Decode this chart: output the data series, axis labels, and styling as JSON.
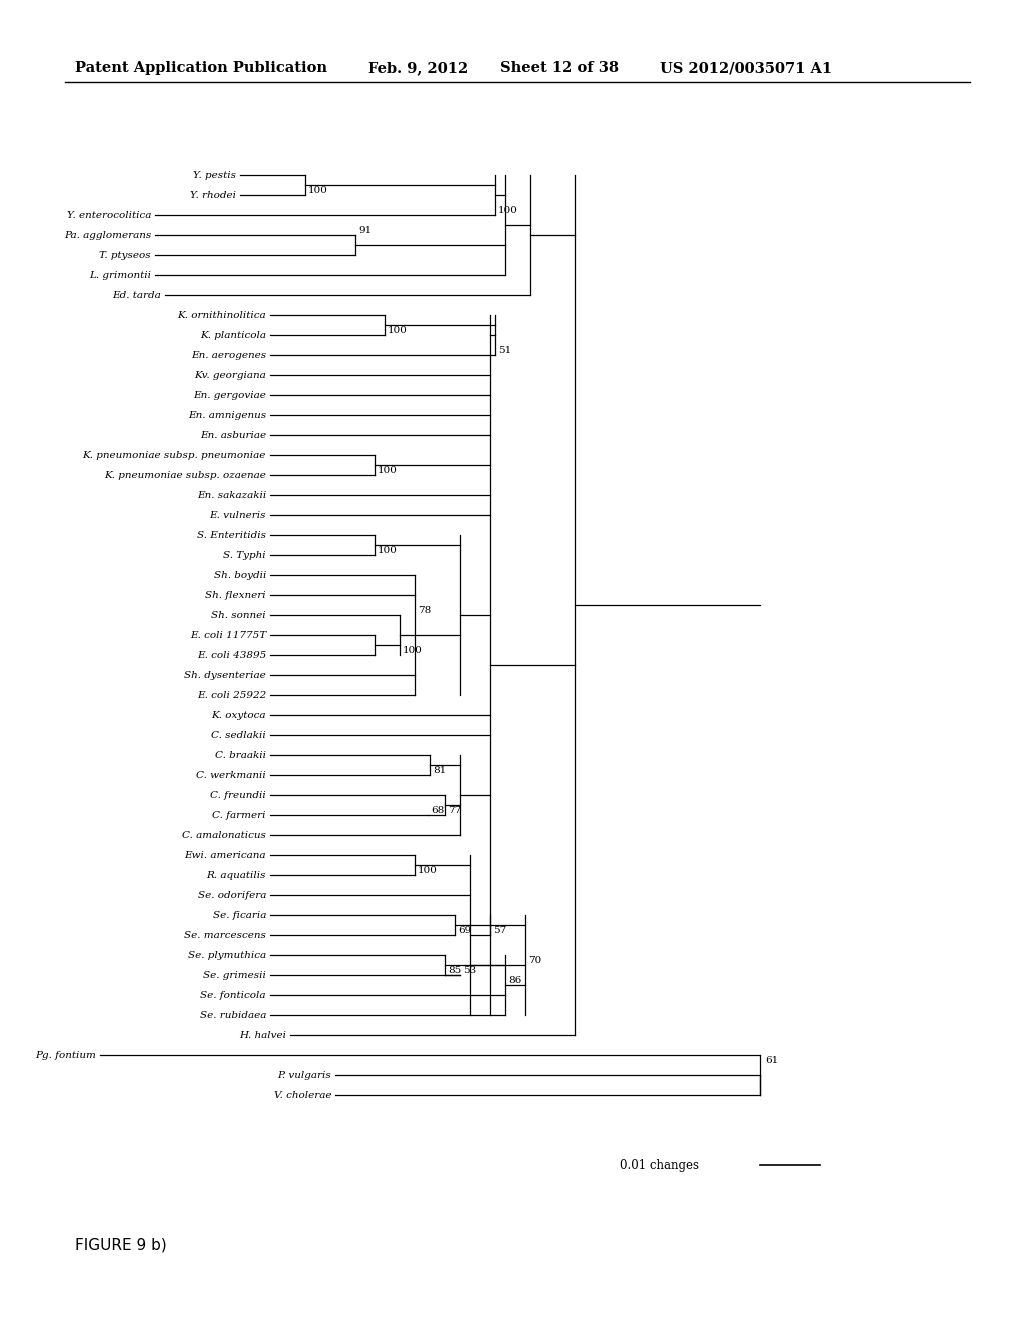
{
  "header_left": "Patent Application Publication",
  "header_date": "Feb. 9, 2012",
  "header_sheet": "Sheet 12 of 38",
  "header_right": "US 2012/0035071 A1",
  "figure_label": "FIGURE 9 b)",
  "scale_label": "0.01 changes",
  "background": "#ffffff",
  "taxa": [
    "Y. pestis",
    "Y. rhodei",
    "Y. enterocolitica",
    "Pa. agglomerans",
    "T. ptyseos",
    "L. grimontii",
    "Ed. tarda",
    "K. ornithinolitica",
    "K. planticola",
    "En. aerogenes",
    "Kv. georgiana",
    "En. gergoviae",
    "En. amnigenus",
    "En. asburiae",
    "K. pneumoniae subsp. pneumoniae",
    "K. pneumoniae subsp. ozaenae",
    "En. sakazakii",
    "E. vulneris",
    "S. Enteritidis",
    "S. Typhi",
    "Sh. boydii",
    "Sh. flexneri",
    "Sh. sonnei",
    "E. coli 11775T",
    "E. coli 43895",
    "Sh. dysenteriae",
    "E. coli 25922",
    "K. oxytoca",
    "C. sedlakii",
    "C. braakii",
    "C. werkmanii",
    "C. freundii",
    "C. farmeri",
    "C. amalonaticus",
    "Ewi. americana",
    "R. aquatilis",
    "Se. odorifera",
    "Se. ficaria",
    "Se. marcescens",
    "Se. plymuthica",
    "Se. grimesii",
    "Se. fonticola",
    "Se. rubidaea",
    "H. halvei",
    "Pg. fontium",
    "P. vulgaris",
    "V. cholerae"
  ]
}
